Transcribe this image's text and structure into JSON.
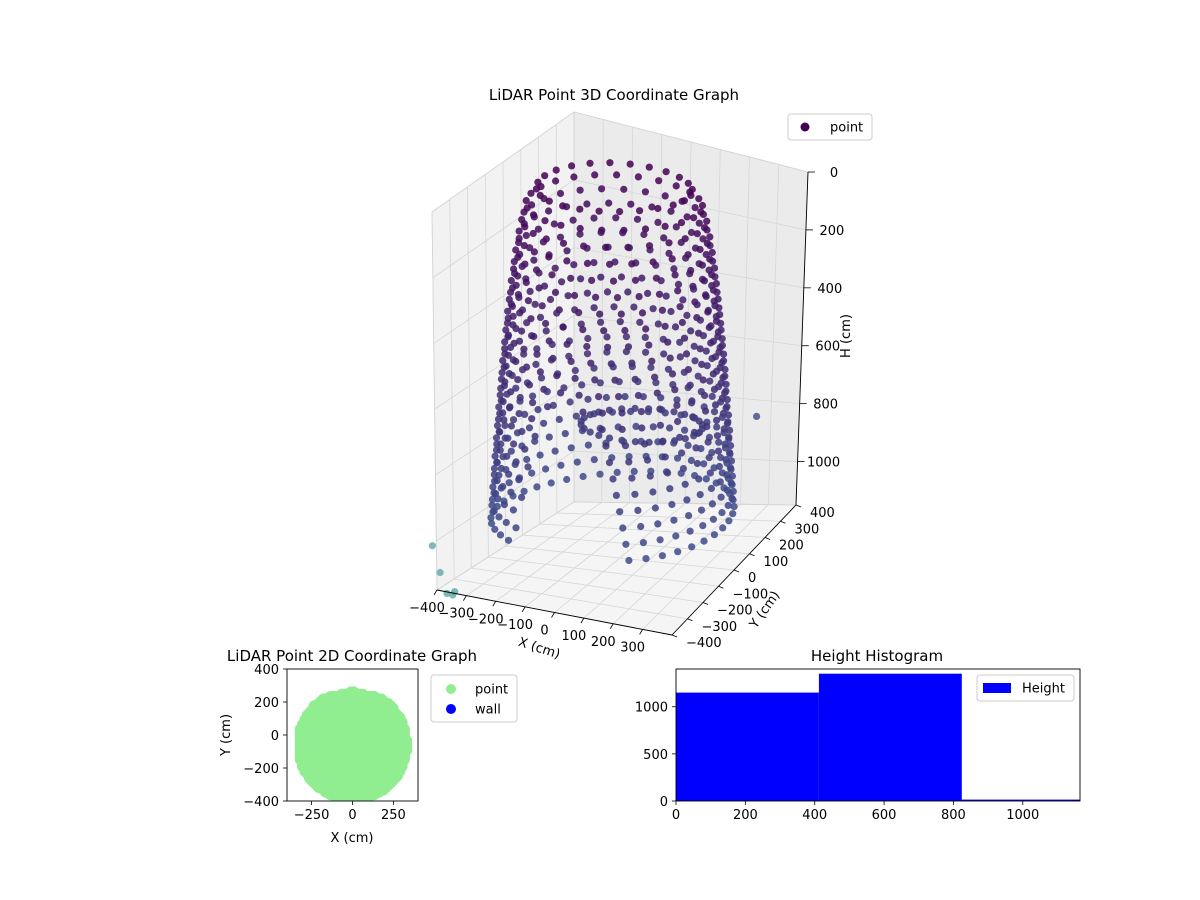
{
  "chart_data": [
    {
      "type": "scatter3d",
      "title": "LiDAR Point 3D Coordinate Graph",
      "xlabel": "X (cm)",
      "ylabel": "Y (cm)",
      "zlabel": "H (cm)",
      "xticks": [
        -400,
        -300,
        -200,
        -100,
        0,
        100,
        200,
        300
      ],
      "yticks": [
        -400,
        -300,
        -200,
        -100,
        0,
        100,
        200,
        300,
        400
      ],
      "zticks": [
        0,
        200,
        400,
        600,
        800,
        1000
      ],
      "xlim": [
        -400,
        400
      ],
      "ylim": [
        -400,
        400
      ],
      "zlim": [
        0,
        1150
      ],
      "z_inverted": true,
      "legend": {
        "labels": [
          "point"
        ],
        "placement": "upper right"
      },
      "colors": {
        "top": "#440154",
        "bottom": "#3d4a8a",
        "outlier": "#5fa6a6"
      },
      "series": [
        {
          "name": "point",
          "shape": "dome",
          "radius_cm": 380,
          "height_range": [
            0,
            1000
          ],
          "azimuth_steps": 44,
          "levels": 22,
          "outliers": [
            {
              "x": -390,
              "y": -440,
              "z": 1000
            },
            {
              "x": -360,
              "y": -410,
              "z": 1150
            },
            {
              "x": -330,
              "y": -500,
              "z": 1050
            },
            {
              "x": -300,
              "y": -480,
              "z": 1120
            },
            {
              "x": -270,
              "y": -520,
              "z": 1090
            },
            {
              "x": 420,
              "y": 90,
              "z": 700
            }
          ]
        }
      ]
    },
    {
      "type": "scatter",
      "title": "LiDAR Point 2D Coordinate Graph",
      "xlabel": "X (cm)",
      "ylabel": "Y (cm)",
      "xticks": [
        -250,
        0,
        250
      ],
      "yticks": [
        -400,
        -200,
        0,
        200,
        400
      ],
      "xlim": [
        -400,
        400
      ],
      "ylim": [
        -400,
        400
      ],
      "legend": {
        "labels": [
          "point",
          "wall"
        ],
        "placement": "outside right"
      },
      "colors": {
        "point": "#90ee90",
        "wall": "#0000ff"
      },
      "series": [
        {
          "name": "point",
          "region": "upper disc",
          "center": [
            0,
            -60
          ],
          "radius": 330,
          "y_max": 260
        },
        {
          "name": "wall",
          "values": []
        }
      ]
    },
    {
      "type": "bar",
      "title": "Height Histogram",
      "xticks": [
        0,
        200,
        400,
        600,
        800,
        1000
      ],
      "yticks": [
        0,
        500,
        1000
      ],
      "xlim": [
        0,
        1165
      ],
      "ylim": [
        0,
        1400
      ],
      "legend": {
        "labels": [
          "Height"
        ],
        "placement": "upper right"
      },
      "colors": {
        "bar": "#0000ff"
      },
      "bins": [
        {
          "start": 0,
          "end": 412,
          "count": 1150
        },
        {
          "start": 412,
          "end": 824,
          "count": 1350
        },
        {
          "start": 824,
          "end": 1165,
          "count": 15
        }
      ],
      "series": [
        {
          "name": "Height"
        }
      ]
    }
  ]
}
